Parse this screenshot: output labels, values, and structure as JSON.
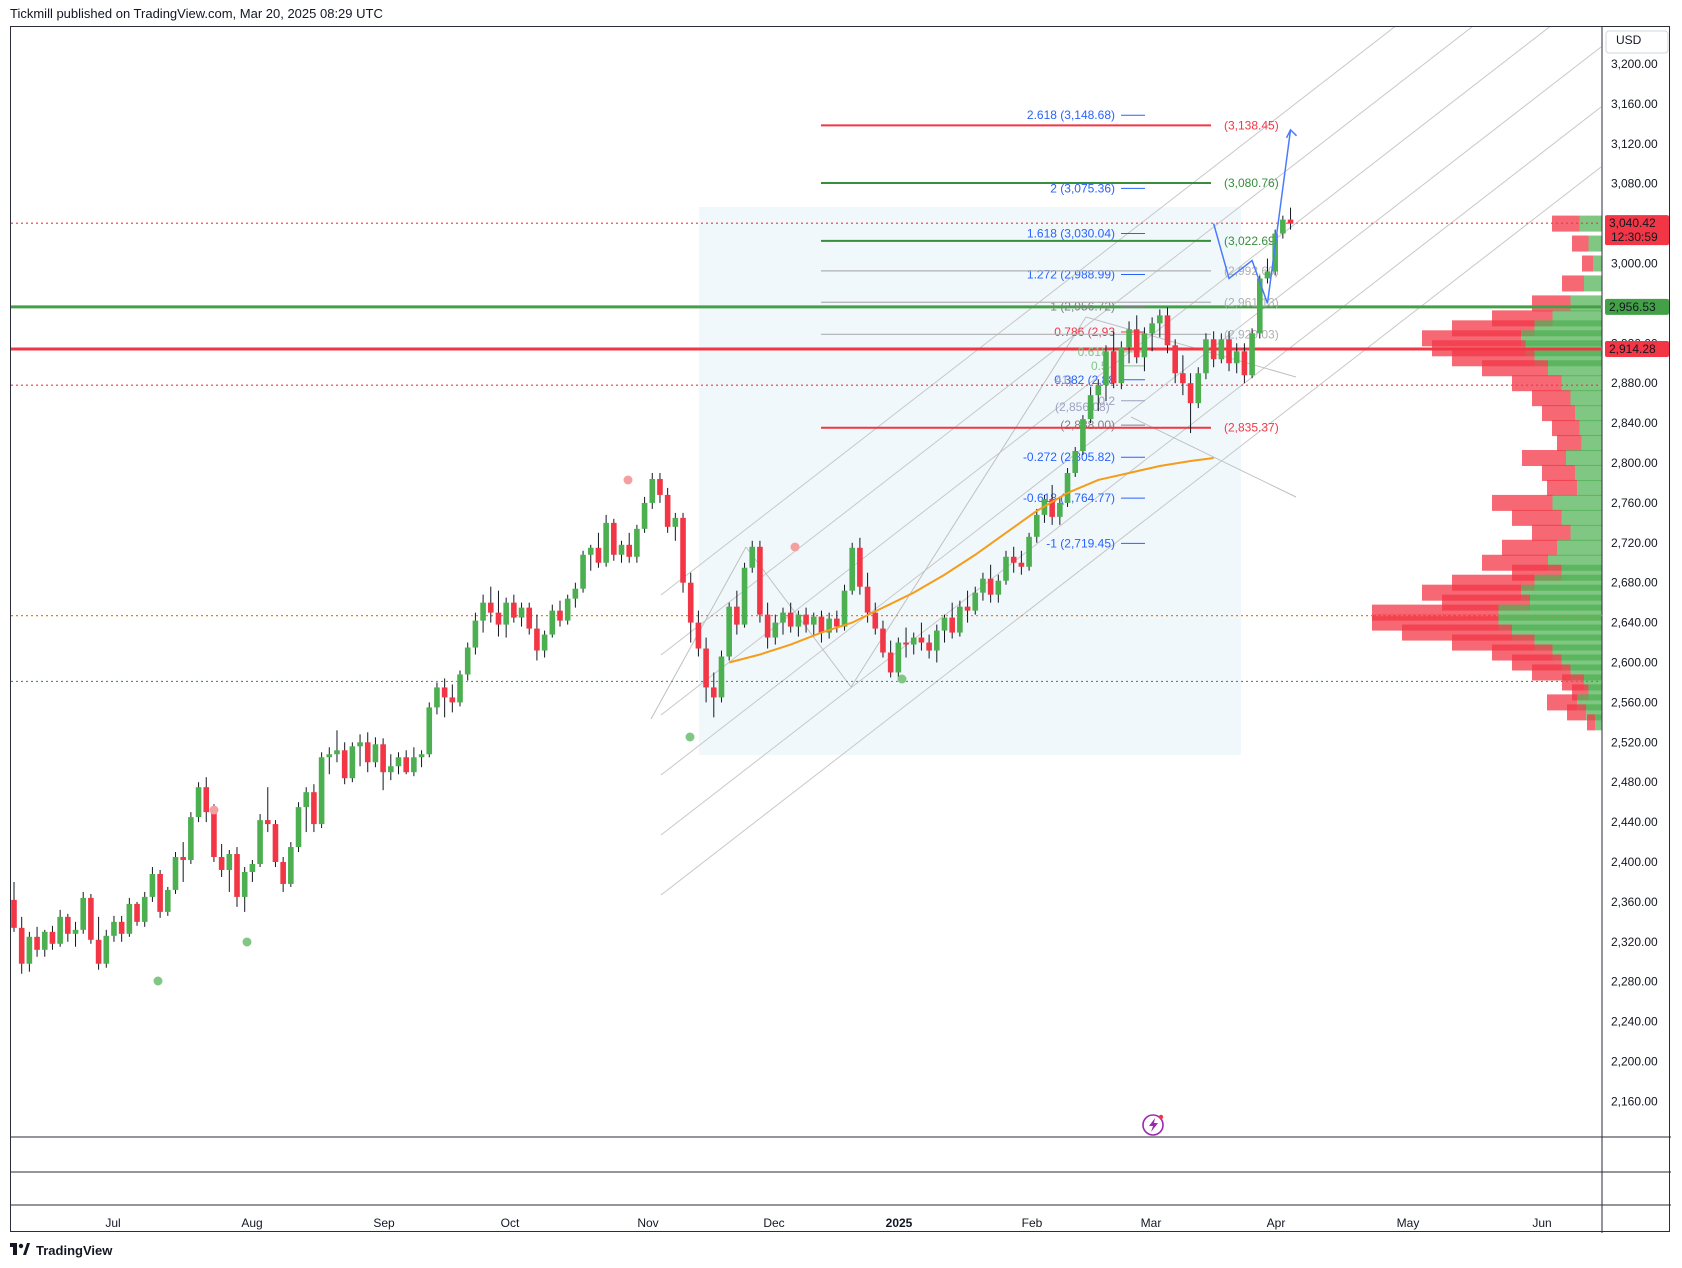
{
  "header": {
    "publisher": "Tickmill published on TradingView.com, Mar 20, 2025 08:29 UTC"
  },
  "footer": {
    "brand": "TradingView"
  },
  "chart_data": {
    "type": "candlestick",
    "currency": "USD",
    "y_ticks": [
      3200,
      3160,
      3120,
      3080,
      3040,
      3000,
      2960,
      2920,
      2880,
      2840,
      2800,
      2760,
      2720,
      2680,
      2640,
      2600,
      2560,
      2520,
      2480,
      2440,
      2400,
      2360,
      2320,
      2280,
      2240,
      2200,
      2160
    ],
    "y_tick_labels": [
      "3,200.00",
      "3,160.00",
      "3,120.00",
      "3,080.00",
      "3,040.00",
      "3,000.00",
      "2,960.00",
      "2,920.00",
      "2,880.00",
      "2,840.00",
      "2,800.00",
      "2,760.00",
      "2,720.00",
      "2,680.00",
      "2,640.00",
      "2,600.00",
      "2,560.00",
      "2,520.00",
      "2,480.00",
      "2,440.00",
      "2,400.00",
      "2,360.00",
      "2,320.00",
      "2,280.00",
      "2,240.00",
      "2,200.00",
      "2,160.00"
    ],
    "x_labels": [
      "Jul",
      "Aug",
      "Sep",
      "Oct",
      "Nov",
      "Dec",
      "2025",
      "Feb",
      "Mar",
      "Apr",
      "May",
      "Jun"
    ],
    "price_badges": [
      {
        "label": "3,040.42",
        "time": "12:30:59",
        "value": 3040.42,
        "color": "#f23645"
      },
      {
        "label": "2,956.53",
        "value": 2956.53,
        "color": "#43a047"
      },
      {
        "label": "2,914.28",
        "value": 2914.28,
        "color": "#f23645"
      }
    ],
    "horizontal_levels": [
      {
        "value": 2956.53,
        "color": "#43a047",
        "style": "solid"
      },
      {
        "value": 2914.28,
        "color": "#f23645",
        "style": "solid"
      },
      {
        "value": 3040.42,
        "color": "#f23645",
        "style": "dotted"
      },
      {
        "value": 2878,
        "color": "#f23645",
        "style": "dotted"
      },
      {
        "value": 2647,
        "color": "#f57c00",
        "style": "dotted"
      },
      {
        "value": 2581,
        "color": "#43a047",
        "style": "dotted"
      }
    ],
    "fib_extension": [
      {
        "label": "2.618 (3,148.68)",
        "value": 3148.68,
        "color": "#2962ff"
      },
      {
        "label": "2 (3,075.36)",
        "value": 3075.36,
        "color": "#2962ff"
      },
      {
        "label": "1.618 (3,030.04)",
        "value": 3030.04,
        "color": "#2962ff"
      },
      {
        "label": "1.272 (2,988.99)",
        "value": 2988.99,
        "color": "#2962ff"
      },
      {
        "label": "1 (2,956.72)",
        "value": 2956.72,
        "color": "#808080"
      },
      {
        "label": "0.786 (2,93",
        "value": 2931.3,
        "color": "#f23645"
      },
      {
        "label": "0.618 (",
        "value": 2911.4,
        "color": "#81c784"
      },
      {
        "label": "0.5 (",
        "value": 2897.4,
        "color": "#81c784"
      },
      {
        "label": "0.382 (2,88",
        "value": 2883.41,
        "color": "#2962ff"
      },
      {
        "label": "0.2",
        "value": 2862.4,
        "color": "#a0a0c0"
      },
      {
        "label": "(2,838.00)",
        "value": 2838.0,
        "color": "#808080"
      },
      {
        "label": "-0.272 (2,805.82)",
        "value": 2805.82,
        "color": "#2962ff"
      },
      {
        "label": "-0.618 (2,764.77)",
        "value": 2764.77,
        "color": "#2962ff"
      },
      {
        "label": "-1 (2,719.45)",
        "value": 2719.45,
        "color": "#2962ff"
      }
    ],
    "fib_extra_text": [
      {
        "label": "(2,856.08)",
        "value": 2856.08
      },
      {
        "label": "41)",
        "value": 2883.41
      }
    ],
    "target_lines": [
      {
        "label": "(3,138.45)",
        "value": 3138.45,
        "color": "#f23645"
      },
      {
        "label": "(3,080.76)",
        "value": 3080.76,
        "color": "#388e3c"
      },
      {
        "label": "(3,022.69)",
        "value": 3022.69,
        "color": "#388e3c"
      },
      {
        "label": "(2,992.60)",
        "value": 2992.6,
        "color": "#b0b0b0"
      },
      {
        "label": "(2,961.13)",
        "value": 2961.13,
        "color": "#b0b0b0"
      },
      {
        "label": "(2,929.03)",
        "value": 2929.03,
        "color": "#b0b0b0"
      },
      {
        "label": "(2,835.37)",
        "value": 2835.37,
        "color": "#f23645"
      }
    ],
    "candles": [
      [
        2362,
        2380,
        2330,
        2334
      ],
      [
        2334,
        2345,
        2288,
        2298
      ],
      [
        2298,
        2330,
        2290,
        2325
      ],
      [
        2325,
        2335,
        2305,
        2312
      ],
      [
        2312,
        2332,
        2305,
        2330
      ],
      [
        2330,
        2336,
        2312,
        2318
      ],
      [
        2318,
        2352,
        2315,
        2345
      ],
      [
        2345,
        2348,
        2320,
        2328
      ],
      [
        2328,
        2340,
        2315,
        2332
      ],
      [
        2332,
        2370,
        2328,
        2364
      ],
      [
        2364,
        2368,
        2318,
        2322
      ],
      [
        2322,
        2345,
        2292,
        2298
      ],
      [
        2298,
        2332,
        2294,
        2326
      ],
      [
        2326,
        2346,
        2320,
        2340
      ],
      [
        2340,
        2346,
        2320,
        2328
      ],
      [
        2328,
        2364,
        2325,
        2358
      ],
      [
        2358,
        2360,
        2336,
        2340
      ],
      [
        2340,
        2370,
        2335,
        2365
      ],
      [
        2365,
        2395,
        2360,
        2388
      ],
      [
        2388,
        2392,
        2344,
        2350
      ],
      [
        2350,
        2375,
        2346,
        2372
      ],
      [
        2372,
        2410,
        2368,
        2405
      ],
      [
        2405,
        2420,
        2380,
        2402
      ],
      [
        2402,
        2450,
        2398,
        2445
      ],
      [
        2445,
        2480,
        2440,
        2475
      ],
      [
        2475,
        2485,
        2440,
        2450
      ],
      [
        2450,
        2458,
        2400,
        2405
      ],
      [
        2405,
        2418,
        2385,
        2392
      ],
      [
        2392,
        2412,
        2370,
        2408
      ],
      [
        2408,
        2415,
        2355,
        2365
      ],
      [
        2365,
        2395,
        2350,
        2390
      ],
      [
        2390,
        2402,
        2380,
        2398
      ],
      [
        2398,
        2448,
        2395,
        2442
      ],
      [
        2442,
        2475,
        2430,
        2438
      ],
      [
        2438,
        2442,
        2395,
        2400
      ],
      [
        2400,
        2405,
        2370,
        2378
      ],
      [
        2378,
        2420,
        2375,
        2415
      ],
      [
        2415,
        2460,
        2410,
        2455
      ],
      [
        2455,
        2475,
        2430,
        2470
      ],
      [
        2470,
        2478,
        2430,
        2438
      ],
      [
        2438,
        2510,
        2434,
        2505
      ],
      [
        2505,
        2515,
        2488,
        2508
      ],
      [
        2508,
        2532,
        2500,
        2512
      ],
      [
        2512,
        2520,
        2478,
        2484
      ],
      [
        2484,
        2520,
        2480,
        2516
      ],
      [
        2516,
        2528,
        2496,
        2520
      ],
      [
        2520,
        2530,
        2490,
        2500
      ],
      [
        2500,
        2525,
        2495,
        2518
      ],
      [
        2518,
        2524,
        2472,
        2490
      ],
      [
        2490,
        2508,
        2482,
        2496
      ],
      [
        2496,
        2510,
        2488,
        2505
      ],
      [
        2505,
        2512,
        2488,
        2490
      ],
      [
        2490,
        2515,
        2486,
        2505
      ],
      [
        2505,
        2512,
        2495,
        2508
      ],
      [
        2508,
        2560,
        2505,
        2555
      ],
      [
        2555,
        2580,
        2548,
        2575
      ],
      [
        2575,
        2584,
        2545,
        2565
      ],
      [
        2565,
        2578,
        2550,
        2560
      ],
      [
        2560,
        2592,
        2556,
        2588
      ],
      [
        2588,
        2620,
        2582,
        2615
      ],
      [
        2615,
        2650,
        2608,
        2642
      ],
      [
        2642,
        2668,
        2630,
        2660
      ],
      [
        2660,
        2676,
        2640,
        2650
      ],
      [
        2650,
        2672,
        2626,
        2638
      ],
      [
        2638,
        2665,
        2625,
        2660
      ],
      [
        2660,
        2668,
        2640,
        2645
      ],
      [
        2645,
        2660,
        2636,
        2655
      ],
      [
        2655,
        2660,
        2628,
        2634
      ],
      [
        2634,
        2648,
        2602,
        2612
      ],
      [
        2612,
        2632,
        2605,
        2628
      ],
      [
        2628,
        2658,
        2625,
        2652
      ],
      [
        2652,
        2662,
        2636,
        2642
      ],
      [
        2642,
        2668,
        2638,
        2664
      ],
      [
        2664,
        2680,
        2655,
        2674
      ],
      [
        2674,
        2712,
        2670,
        2708
      ],
      [
        2708,
        2718,
        2692,
        2715
      ],
      [
        2715,
        2730,
        2695,
        2700
      ],
      [
        2700,
        2748,
        2696,
        2740
      ],
      [
        2740,
        2744,
        2702,
        2708
      ],
      [
        2708,
        2722,
        2700,
        2718
      ],
      [
        2718,
        2730,
        2700,
        2706
      ],
      [
        2706,
        2738,
        2700,
        2734
      ],
      [
        2734,
        2766,
        2730,
        2760
      ],
      [
        2760,
        2790,
        2754,
        2784
      ],
      [
        2784,
        2790,
        2760,
        2768
      ],
      [
        2768,
        2775,
        2730,
        2736
      ],
      [
        2736,
        2750,
        2722,
        2745
      ],
      [
        2745,
        2750,
        2670,
        2680
      ],
      [
        2680,
        2690,
        2620,
        2640
      ],
      [
        2640,
        2652,
        2606,
        2614
      ],
      [
        2614,
        2625,
        2560,
        2575
      ],
      [
        2575,
        2590,
        2545,
        2565
      ],
      [
        2565,
        2612,
        2560,
        2606
      ],
      [
        2606,
        2660,
        2602,
        2656
      ],
      [
        2656,
        2672,
        2628,
        2638
      ],
      [
        2638,
        2700,
        2635,
        2695
      ],
      [
        2695,
        2722,
        2690,
        2716
      ],
      [
        2716,
        2722,
        2640,
        2648
      ],
      [
        2648,
        2660,
        2614,
        2625
      ],
      [
        2625,
        2648,
        2618,
        2640
      ],
      [
        2640,
        2655,
        2628,
        2650
      ],
      [
        2650,
        2660,
        2630,
        2636
      ],
      [
        2636,
        2652,
        2626,
        2648
      ],
      [
        2648,
        2655,
        2630,
        2638
      ],
      [
        2638,
        2650,
        2626,
        2646
      ],
      [
        2646,
        2652,
        2620,
        2630
      ],
      [
        2630,
        2650,
        2624,
        2644
      ],
      [
        2644,
        2652,
        2630,
        2636
      ],
      [
        2636,
        2678,
        2632,
        2672
      ],
      [
        2672,
        2720,
        2668,
        2715
      ],
      [
        2715,
        2725,
        2668,
        2676
      ],
      [
        2676,
        2690,
        2640,
        2650
      ],
      [
        2650,
        2660,
        2628,
        2634
      ],
      [
        2634,
        2642,
        2605,
        2610
      ],
      [
        2610,
        2622,
        2585,
        2590
      ],
      [
        2590,
        2625,
        2584,
        2620
      ],
      [
        2620,
        2635,
        2605,
        2618
      ],
      [
        2618,
        2630,
        2608,
        2625
      ],
      [
        2625,
        2640,
        2612,
        2620
      ],
      [
        2620,
        2628,
        2604,
        2612
      ],
      [
        2612,
        2638,
        2600,
        2632
      ],
      [
        2632,
        2648,
        2620,
        2645
      ],
      [
        2645,
        2660,
        2624,
        2630
      ],
      [
        2630,
        2662,
        2626,
        2656
      ],
      [
        2656,
        2672,
        2640,
        2652
      ],
      [
        2652,
        2676,
        2648,
        2670
      ],
      [
        2670,
        2690,
        2662,
        2684
      ],
      [
        2684,
        2698,
        2660,
        2668
      ],
      [
        2668,
        2688,
        2660,
        2682
      ],
      [
        2682,
        2712,
        2678,
        2706
      ],
      [
        2706,
        2716,
        2690,
        2700
      ],
      [
        2700,
        2712,
        2688,
        2696
      ],
      [
        2696,
        2730,
        2692,
        2726
      ],
      [
        2726,
        2754,
        2720,
        2748
      ],
      [
        2748,
        2768,
        2740,
        2764
      ],
      [
        2764,
        2778,
        2738,
        2746
      ],
      [
        2746,
        2766,
        2738,
        2760
      ],
      [
        2760,
        2795,
        2756,
        2790
      ],
      [
        2790,
        2816,
        2786,
        2812
      ],
      [
        2812,
        2848,
        2808,
        2844
      ],
      [
        2844,
        2876,
        2840,
        2868
      ],
      [
        2868,
        2884,
        2852,
        2878
      ],
      [
        2878,
        2918,
        2862,
        2912
      ],
      [
        2912,
        2932,
        2875,
        2880
      ],
      [
        2880,
        2922,
        2874,
        2916
      ],
      [
        2916,
        2942,
        2900,
        2934
      ],
      [
        2934,
        2948,
        2900,
        2906
      ],
      [
        2906,
        2936,
        2892,
        2930
      ],
      [
        2930,
        2946,
        2912,
        2940
      ],
      [
        2940,
        2954,
        2926,
        2948
      ],
      [
        2948,
        2956,
        2910,
        2918
      ],
      [
        2918,
        2924,
        2880,
        2890
      ],
      [
        2890,
        2908,
        2868,
        2880
      ],
      [
        2880,
        2890,
        2830,
        2860
      ],
      [
        2860,
        2896,
        2855,
        2890
      ],
      [
        2890,
        2930,
        2884,
        2924
      ],
      [
        2924,
        2932,
        2896,
        2904
      ],
      [
        2904,
        2930,
        2900,
        2924
      ],
      [
        2924,
        2932,
        2892,
        2900
      ],
      [
        2900,
        2920,
        2890,
        2912
      ],
      [
        2912,
        2920,
        2880,
        2888
      ],
      [
        2888,
        2935,
        2885,
        2930
      ],
      [
        2930,
        2988,
        2925,
        2985
      ],
      [
        2985,
        3005,
        2980,
        2992
      ],
      [
        2992,
        3034,
        2988,
        3030
      ],
      [
        3030,
        3048,
        3025,
        3044
      ],
      [
        3044,
        3056,
        3034,
        3040
      ]
    ],
    "ma_line": [
      [
        93,
        2600
      ],
      [
        97,
        2608
      ],
      [
        101,
        2618
      ],
      [
        105,
        2630
      ],
      [
        109,
        2640
      ],
      [
        113,
        2655
      ],
      [
        117,
        2670
      ],
      [
        121,
        2688
      ],
      [
        125,
        2708
      ],
      [
        129,
        2730
      ],
      [
        133,
        2752
      ],
      [
        137,
        2770
      ],
      [
        141,
        2783
      ],
      [
        145,
        2790
      ],
      [
        149,
        2797
      ],
      [
        153,
        2802
      ],
      [
        156,
        2805
      ]
    ],
    "projection_path": [
      [
        156,
        3040
      ],
      [
        158,
        2985
      ],
      [
        161,
        3003
      ],
      [
        163,
        2960
      ],
      [
        166,
        3134
      ]
    ],
    "volume_profile_note": "horizontal volume profile at right edge (green = up volume, red = down volume)"
  }
}
